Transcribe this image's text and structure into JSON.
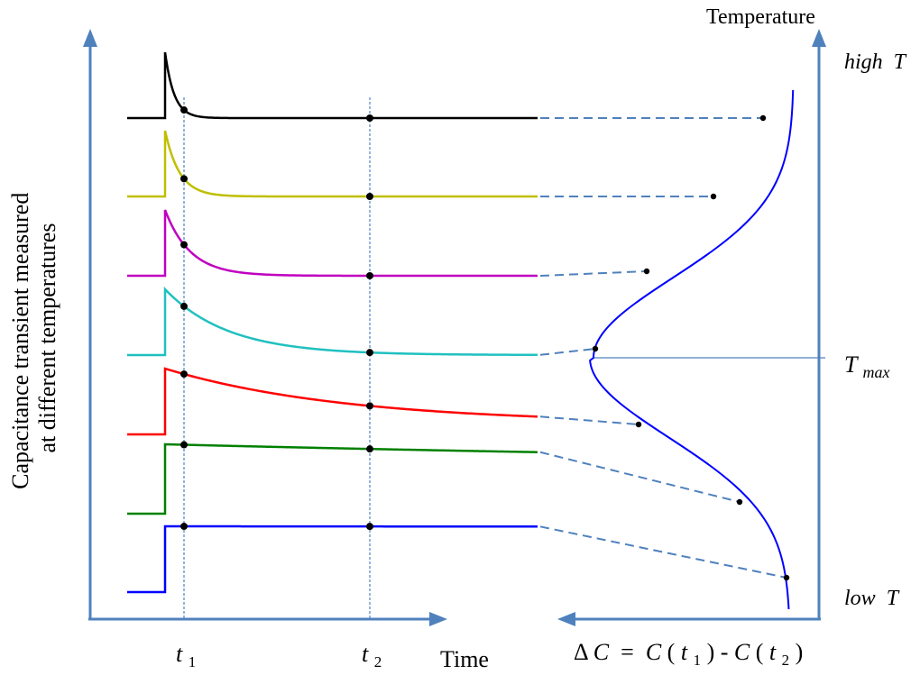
{
  "labels": {
    "y_axis_line1": "Capacitance transient measured",
    "y_axis_line2": "at different temperatures",
    "temperature_axis": "Temperature",
    "high_t_main": "high",
    "high_t_var": "T",
    "low_t_main": "low",
    "low_t_var": "T",
    "tmax_main": "T",
    "tmax_sub": "max",
    "t1_main": "t",
    "t1_sub": "1",
    "t2_main": "t",
    "t2_sub": "2",
    "time_axis": "Time",
    "dc_delta": "Δ",
    "dc_c1": "C",
    "dc_eq": " = ",
    "dc_c2": "C",
    "dc_open1": "(",
    "dc_t1": "t",
    "dc_sub1": "1",
    "dc_close1": ")",
    "dc_dash": "-",
    "dc_c3": "C",
    "dc_open2": "(",
    "dc_t2": "t",
    "dc_sub2": "2",
    "dc_close2": ")"
  },
  "colors": {
    "axis": "#4f81bd",
    "dashed_link": "#4f81bd",
    "marker_line": "#4f81bd",
    "peak_curve": "#0000ff",
    "marker_dot": "#000000"
  },
  "transients": [
    {
      "name": "highest-temperature",
      "color": "#000000"
    },
    {
      "name": "temperature-6",
      "color": "#bfbf00"
    },
    {
      "name": "temperature-5",
      "color": "#c000c0"
    },
    {
      "name": "temperature-4",
      "color": "#20c0c0"
    },
    {
      "name": "temperature-3",
      "color": "#ff0000"
    },
    {
      "name": "temperature-2",
      "color": "#008000"
    },
    {
      "name": "lowest-temperature",
      "color": "#0000ff"
    }
  ]
}
